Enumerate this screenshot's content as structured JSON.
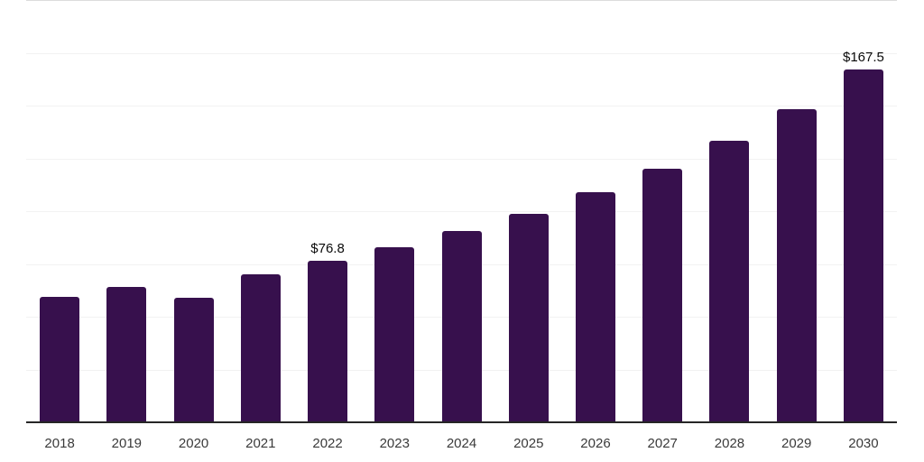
{
  "chart_data": {
    "type": "bar",
    "title": "",
    "xlabel": "",
    "ylabel": "",
    "categories": [
      "2018",
      "2019",
      "2020",
      "2021",
      "2022",
      "2023",
      "2024",
      "2025",
      "2026",
      "2027",
      "2028",
      "2029",
      "2030"
    ],
    "values": [
      59.7,
      64.5,
      59.4,
      70.5,
      76.8,
      83.2,
      91.0,
      99.3,
      109.3,
      120.4,
      133.8,
      148.9,
      167.5
    ],
    "data_labels": [
      null,
      null,
      null,
      null,
      "$76.8",
      null,
      null,
      null,
      null,
      null,
      null,
      null,
      "$167.5"
    ],
    "ylim": [
      0,
      200
    ],
    "grid_step": 25,
    "grid": true,
    "legend_position": "none",
    "colors": {
      "bar": "#37104D",
      "axis_line": "#262626",
      "gridline": "#f2f2f2",
      "top_gridline": "#dcdcdc",
      "tick_label": "#3a3a3a",
      "data_label": "#0a0a0a",
      "background": "#ffffff"
    }
  }
}
